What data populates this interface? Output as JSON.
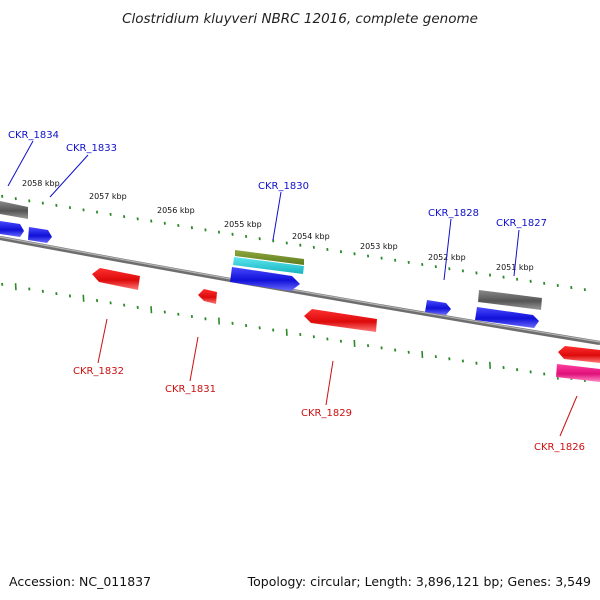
{
  "title": "Clostridium kluyveri NBRC 12016, complete genome",
  "footer": {
    "accession": "Accession: NC_011837",
    "summary": "Topology: circular; Length: 3,896,121 bp; Genes: 3,549"
  },
  "scale_labels": [
    "2058 kbp",
    "2057 kbp",
    "2056 kbp",
    "2055 kbp",
    "2054 kbp",
    "2053 kbp",
    "2052 kbp",
    "2051 kbp"
  ],
  "gene_labels": {
    "forward": [
      "CKR_1834",
      "CKR_1833",
      "CKR_1830",
      "CKR_1828",
      "CKR_1827"
    ],
    "reverse": [
      "CKR_1832",
      "CKR_1831",
      "CKR_1829",
      "CKR_1826"
    ]
  },
  "colors": {
    "forward_label": "#1010cc",
    "reverse_label": "#cc1010",
    "tick": "#2a8a2a",
    "backbone": "#888888",
    "blue_gene": "#1414e0",
    "red_gene": "#e01414",
    "gray_gene": "#5c5c5c",
    "olive_gene": "#6f8a2a",
    "cyan_gene": "#22c8d2",
    "magenta_gene": "#e0147e"
  }
}
